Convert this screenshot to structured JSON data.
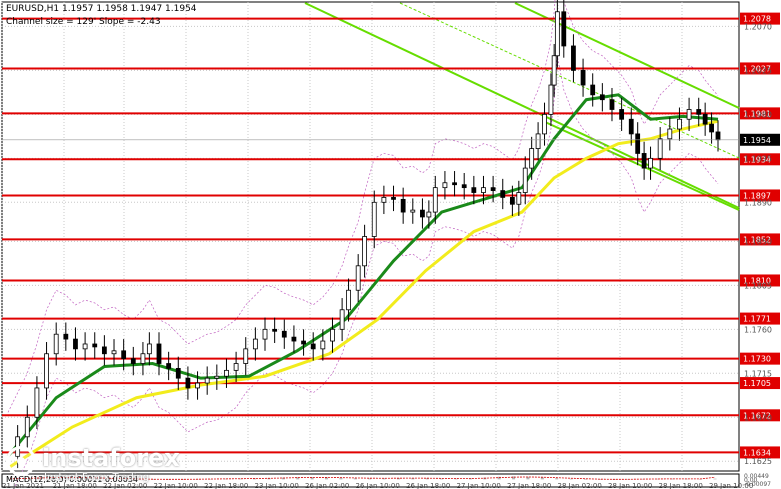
{
  "header": {
    "title": "EURUSD,H1  1.1957 1.1958 1.1947 1.1954",
    "subtitle": "Channel size = 129' Slope = -2.43"
  },
  "logo": {
    "name": "instaforex",
    "tagline": "Instant Forex Trading"
  },
  "colors": {
    "background": "#ffffff",
    "grid": "#c8c8c8",
    "candles": "#000000",
    "level_lines": "#e00000",
    "channel": "#66dd00",
    "channel_mid": "#66dd00",
    "ma_fast": "#1a8a1a",
    "ma_slow": "#f2ec1c",
    "bollinger": "#c060c0",
    "macd_hist": "#b4b4b4",
    "macd_signal": "#d00000",
    "current_price_bg": "#000000"
  },
  "chart_data": [
    {
      "type": "candlestick",
      "symbol": "EURUSD",
      "timeframe": "H1",
      "ohlc_last": {
        "open": 1.1957,
        "high": 1.1958,
        "low": 1.1947,
        "close": 1.1954
      },
      "ylim": [
        1.1615,
        1.2095
      ],
      "current_price": "1.1954",
      "x_tick_labels": [
        "21 Jan 2021",
        "21 Jan 18:00",
        "22 Jan 02:00",
        "22 Jan 10:00",
        "22 Jan 18:00",
        "23 Jan 10:00",
        "26 Jan 02:00",
        "26 Jan 10:00",
        "26 Jan 18:00",
        "27 Jan 10:00",
        "27 Jan 18:00",
        "28 Jan 02:00",
        "28 Jan 10:00",
        "28 Jan 18:00",
        "29 Jan 10:00"
      ],
      "y_tick_labels": [
        "1.2070",
        "1.2025",
        "1.1980",
        "1.1935",
        "1.1890",
        "1.1850",
        "1.1805",
        "1.1760",
        "1.1715",
        "1.1670",
        "1.1625"
      ],
      "levels": [
        {
          "value": 1.2078,
          "label": "1.2078"
        },
        {
          "value": 1.2027,
          "label": "1.2027"
        },
        {
          "value": 1.1981,
          "label": "1.1981"
        },
        {
          "value": 1.1934,
          "label": "1.1934"
        },
        {
          "value": 1.1897,
          "label": "1.1897"
        },
        {
          "value": 1.1852,
          "label": "1.1852"
        },
        {
          "value": 1.181,
          "label": "1.1810"
        },
        {
          "value": 1.1771,
          "label": "1.1771"
        },
        {
          "value": 1.173,
          "label": "1.1730"
        },
        {
          "value": 1.1705,
          "label": "1.1705"
        },
        {
          "value": 1.1672,
          "label": "1.1672"
        },
        {
          "value": 1.1634,
          "label": "1.1634"
        }
      ],
      "close_path": [
        [
          0,
          1.163
        ],
        [
          6,
          1.165
        ],
        [
          12,
          1.167
        ],
        [
          18,
          1.17
        ],
        [
          24,
          1.1735
        ],
        [
          30,
          1.1755
        ],
        [
          36,
          1.175
        ],
        [
          42,
          1.174
        ],
        [
          48,
          1.1745
        ],
        [
          54,
          1.1742
        ],
        [
          60,
          1.1735
        ],
        [
          66,
          1.1738
        ],
        [
          72,
          1.173
        ],
        [
          78,
          1.1725
        ],
        [
          84,
          1.1735
        ],
        [
          88,
          1.1745
        ],
        [
          94,
          1.1725
        ],
        [
          100,
          1.172
        ],
        [
          106,
          1.171
        ],
        [
          112,
          1.17
        ],
        [
          118,
          1.1705
        ],
        [
          124,
          1.171
        ],
        [
          130,
          1.1712
        ],
        [
          136,
          1.1718
        ],
        [
          142,
          1.1725
        ],
        [
          148,
          1.174
        ],
        [
          154,
          1.175
        ],
        [
          160,
          1.176
        ],
        [
          166,
          1.1758
        ],
        [
          172,
          1.1752
        ],
        [
          178,
          1.1748
        ],
        [
          184,
          1.1745
        ],
        [
          190,
          1.174
        ],
        [
          196,
          1.1748
        ],
        [
          202,
          1.176
        ],
        [
          208,
          1.178
        ],
        [
          212,
          1.18
        ],
        [
          218,
          1.1825
        ],
        [
          222,
          1.1855
        ],
        [
          228,
          1.189
        ],
        [
          234,
          1.1895
        ],
        [
          240,
          1.1893
        ],
        [
          246,
          1.188
        ],
        [
          252,
          1.1882
        ],
        [
          258,
          1.1875
        ],
        [
          262,
          1.188
        ],
        [
          266,
          1.1905
        ],
        [
          272,
          1.191
        ],
        [
          278,
          1.1908
        ],
        [
          284,
          1.1905
        ],
        [
          290,
          1.19
        ],
        [
          296,
          1.1905
        ],
        [
          302,
          1.1902
        ],
        [
          308,
          1.1895
        ],
        [
          314,
          1.1888
        ],
        [
          318,
          1.19
        ],
        [
          322,
          1.1925
        ],
        [
          326,
          1.1945
        ],
        [
          330,
          1.196
        ],
        [
          334,
          1.198
        ],
        [
          338,
          1.201
        ],
        [
          340,
          1.204
        ],
        [
          342,
          1.2085
        ],
        [
          346,
          1.205
        ],
        [
          352,
          1.2025
        ],
        [
          358,
          1.201
        ],
        [
          364,
          1.2
        ],
        [
          370,
          1.1995
        ],
        [
          376,
          1.1985
        ],
        [
          382,
          1.1975
        ],
        [
          388,
          1.196
        ],
        [
          392,
          1.194
        ],
        [
          396,
          1.1925
        ],
        [
          400,
          1.1935
        ],
        [
          406,
          1.1955
        ],
        [
          412,
          1.1965
        ],
        [
          418,
          1.1975
        ],
        [
          424,
          1.1985
        ],
        [
          430,
          1.198
        ],
        [
          434,
          1.197
        ],
        [
          438,
          1.1962
        ],
        [
          442,
          1.1954
        ]
      ],
      "ma_slow": [
        [
          0,
          1.1618
        ],
        [
          40,
          1.166
        ],
        [
          80,
          1.169
        ],
        [
          120,
          1.1703
        ],
        [
          160,
          1.1712
        ],
        [
          200,
          1.1735
        ],
        [
          230,
          1.177
        ],
        [
          260,
          1.182
        ],
        [
          290,
          1.186
        ],
        [
          320,
          1.188
        ],
        [
          340,
          1.1915
        ],
        [
          360,
          1.1935
        ],
        [
          380,
          1.195
        ],
        [
          400,
          1.1955
        ],
        [
          420,
          1.1965
        ],
        [
          442,
          1.1973
        ]
      ],
      "ma_fast": [
        [
          0,
          1.163
        ],
        [
          30,
          1.169
        ],
        [
          60,
          1.1722
        ],
        [
          90,
          1.1725
        ],
        [
          120,
          1.171
        ],
        [
          150,
          1.1712
        ],
        [
          180,
          1.1738
        ],
        [
          210,
          1.177
        ],
        [
          240,
          1.183
        ],
        [
          270,
          1.188
        ],
        [
          300,
          1.1895
        ],
        [
          320,
          1.1905
        ],
        [
          340,
          1.1955
        ],
        [
          360,
          1.1995
        ],
        [
          380,
          1.2
        ],
        [
          400,
          1.1975
        ],
        [
          420,
          1.1978
        ],
        [
          442,
          1.1975
        ]
      ],
      "macd": {
        "label": "MACD(12,26,9) 0.00011 0.00034",
        "ylim": [
          -0.0011,
          0.00055
        ],
        "y_tick_labels": [
          "0.00449",
          "0.00",
          "-0.00097"
        ],
        "hist": [
          0.0001,
          0.0002,
          0.0003,
          0.00038,
          0.00035,
          0.0003,
          0.00022,
          0.00015,
          8e-05,
          3e-05,
          -2e-05,
          -4e-05,
          -2e-05,
          2e-05,
          6e-05,
          0.0001,
          0.00012,
          0.00015,
          0.0002,
          0.00028,
          0.00035,
          0.00037,
          0.00032,
          0.00025,
          0.00018,
          0.00015,
          0.00017,
          0.0002,
          0.00022,
          0.00018,
          0.00012,
          0.0001,
          0.00016,
          0.00028,
          0.00042,
          0.00048,
          0.00042,
          0.0003,
          0.00018,
          8e-05,
          1e-05,
          -4e-05,
          -2e-05,
          3e-05,
          7e-05,
          9e-05,
          0.0001,
          8e-05,
          5e-05,
          0.00011
        ],
        "signal": [
          8e-05,
          0.00015,
          0.00022,
          0.00028,
          0.0003,
          0.00028,
          0.00024,
          0.00018,
          0.00012,
          6e-05,
          2e-05,
          0.0,
          0.0,
          2e-05,
          5e-05,
          8e-05,
          0.0001,
          0.00013,
          0.00017,
          0.00022,
          0.00028,
          0.00032,
          0.00031,
          0.00028,
          0.00023,
          0.00019,
          0.00018,
          0.00019,
          0.0002,
          0.00019,
          0.00016,
          0.00013,
          0.00014,
          0.00019,
          0.00028,
          0.00036,
          0.00039,
          0.00035,
          0.00027,
          0.00018,
          0.0001,
          3e-05,
          0.0,
          1e-05,
          4e-05,
          6e-05,
          8e-05,
          8e-05,
          7e-05,
          0.00034
        ]
      }
    }
  ]
}
